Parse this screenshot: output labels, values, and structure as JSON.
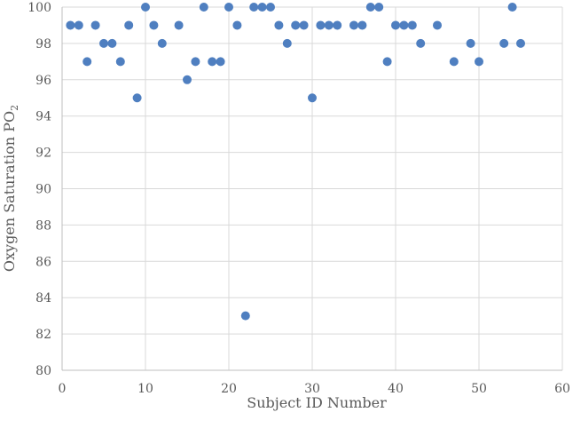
{
  "chart_data": {
    "type": "scatter",
    "xlabel": "Subject ID Number",
    "ylabel_main": "Oxygen Saturation PO",
    "ylabel_sub": "2",
    "xlim": [
      0,
      60
    ],
    "ylim": [
      80,
      100
    ],
    "xticks": [
      0,
      10,
      20,
      30,
      40,
      50,
      60
    ],
    "yticks": [
      80,
      82,
      84,
      86,
      88,
      90,
      92,
      94,
      96,
      98,
      100
    ],
    "grid": true,
    "legend": "none",
    "color": "#4f7fc0",
    "points": [
      {
        "x": 1,
        "y": 99
      },
      {
        "x": 2,
        "y": 99
      },
      {
        "x": 3,
        "y": 97
      },
      {
        "x": 4,
        "y": 99
      },
      {
        "x": 5,
        "y": 98
      },
      {
        "x": 6,
        "y": 98
      },
      {
        "x": 7,
        "y": 97
      },
      {
        "x": 8,
        "y": 99
      },
      {
        "x": 9,
        "y": 95
      },
      {
        "x": 10,
        "y": 100
      },
      {
        "x": 11,
        "y": 99
      },
      {
        "x": 12,
        "y": 98
      },
      {
        "x": 14,
        "y": 99
      },
      {
        "x": 15,
        "y": 96
      },
      {
        "x": 16,
        "y": 97
      },
      {
        "x": 17,
        "y": 100
      },
      {
        "x": 18,
        "y": 97
      },
      {
        "x": 19,
        "y": 97
      },
      {
        "x": 20,
        "y": 100
      },
      {
        "x": 21,
        "y": 99
      },
      {
        "x": 22,
        "y": 83
      },
      {
        "x": 23,
        "y": 100
      },
      {
        "x": 24,
        "y": 100
      },
      {
        "x": 25,
        "y": 100
      },
      {
        "x": 26,
        "y": 99
      },
      {
        "x": 27,
        "y": 98
      },
      {
        "x": 28,
        "y": 99
      },
      {
        "x": 29,
        "y": 99
      },
      {
        "x": 30,
        "y": 95
      },
      {
        "x": 31,
        "y": 99
      },
      {
        "x": 32,
        "y": 99
      },
      {
        "x": 33,
        "y": 99
      },
      {
        "x": 35,
        "y": 99
      },
      {
        "x": 36,
        "y": 99
      },
      {
        "x": 37,
        "y": 100
      },
      {
        "x": 38,
        "y": 100
      },
      {
        "x": 39,
        "y": 97
      },
      {
        "x": 40,
        "y": 99
      },
      {
        "x": 41,
        "y": 99
      },
      {
        "x": 42,
        "y": 99
      },
      {
        "x": 43,
        "y": 98
      },
      {
        "x": 45,
        "y": 99
      },
      {
        "x": 47,
        "y": 97
      },
      {
        "x": 49,
        "y": 98
      },
      {
        "x": 50,
        "y": 97
      },
      {
        "x": 53,
        "y": 98
      },
      {
        "x": 54,
        "y": 100
      },
      {
        "x": 55,
        "y": 98
      }
    ]
  }
}
